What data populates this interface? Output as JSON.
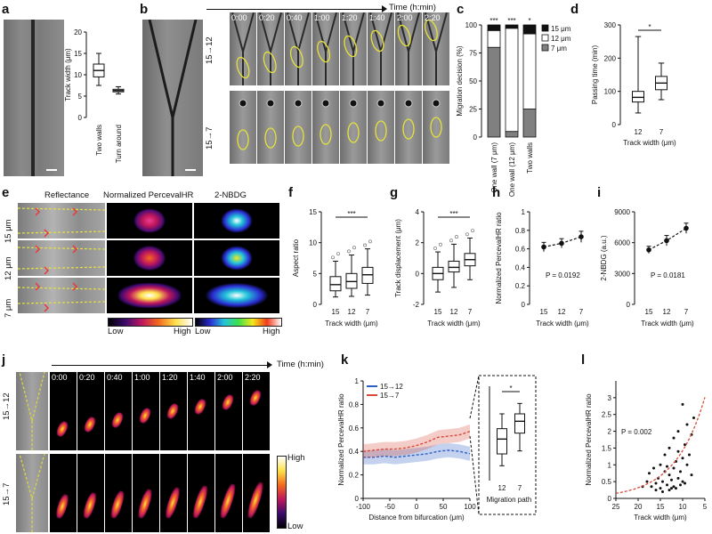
{
  "panel_labels": [
    "a",
    "b",
    "c",
    "d",
    "e",
    "f",
    "g",
    "h",
    "i",
    "j",
    "k",
    "l"
  ],
  "time_axis_label": "Time (h:min)",
  "panel_b": {
    "rows": [
      "15→12",
      "15→7"
    ],
    "times": [
      "0:00",
      "0:20",
      "0:40",
      "1:00",
      "1:20",
      "1:40",
      "2:00",
      "2:20"
    ]
  },
  "panel_e": {
    "columns": [
      "Reflectance",
      "Normalized PercevalHR",
      "2-NBDG"
    ],
    "rows": [
      "15 μm",
      "12 μm",
      "7 μm"
    ],
    "scale_low": "Low",
    "scale_high": "High"
  },
  "panel_j": {
    "rows": [
      "15→12",
      "15→7"
    ],
    "times": [
      "0:00",
      "0:20",
      "0:40",
      "1:00",
      "1:20",
      "1:40",
      "2:00",
      "2:20"
    ],
    "scale_high": "High",
    "scale_low": "Low"
  },
  "chart_data": [
    {
      "id": "a",
      "type": "box",
      "ylabel": "Track width (μm)",
      "ylim": [
        0,
        20
      ],
      "yticks": [
        0,
        5,
        10,
        15,
        20
      ],
      "categories": [
        "Two walls",
        "Turn around"
      ],
      "boxes": [
        {
          "min": 7.5,
          "q1": 9.5,
          "median": 11,
          "q3": 12.5,
          "max": 15
        },
        {
          "min": 5.5,
          "q1": 6.0,
          "median": 6.3,
          "q3": 6.6,
          "max": 7.2
        }
      ]
    },
    {
      "id": "c",
      "type": "bar",
      "ylabel": "Migration decision (%)",
      "ylim": [
        0,
        100
      ],
      "yticks": [
        0,
        25,
        50,
        75,
        100
      ],
      "categories": [
        "One wall (7 μm)",
        "One wall (12 μm)",
        "Two walls"
      ],
      "series": [
        {
          "name": "7 μm",
          "color": "#808080",
          "values": [
            80,
            5,
            25
          ]
        },
        {
          "name": "12 μm",
          "color": "#ffffff",
          "values": [
            15,
            92,
            67
          ]
        },
        {
          "name": "15 μm",
          "color": "#111111",
          "values": [
            5,
            3,
            8
          ]
        }
      ],
      "annotations": [
        "***",
        "***",
        "*"
      ]
    },
    {
      "id": "d",
      "type": "box",
      "ylabel": "Passing time (min)",
      "xlabel": "Track width (μm)",
      "ylim": [
        0,
        300
      ],
      "yticks": [
        0,
        100,
        200,
        300
      ],
      "categories": [
        "12",
        "7"
      ],
      "boxes": [
        {
          "min": 35,
          "q1": 68,
          "median": 82,
          "q3": 100,
          "max": 265
        },
        {
          "min": 75,
          "q1": 105,
          "median": 125,
          "q3": 145,
          "max": 185
        }
      ],
      "annotations": [
        "*"
      ]
    },
    {
      "id": "f",
      "type": "box",
      "ylabel": "Aspect ratio",
      "xlabel": "Track width (μm)",
      "ylim": [
        0,
        15
      ],
      "yticks": [
        0,
        5,
        10,
        15
      ],
      "categories": [
        "15",
        "12",
        "7"
      ],
      "boxes": [
        {
          "min": 1.2,
          "q1": 2.2,
          "median": 3.2,
          "q3": 4.5,
          "max": 7
        },
        {
          "min": 1.3,
          "q1": 2.6,
          "median": 3.7,
          "q3": 5.0,
          "max": 8
        },
        {
          "min": 1.5,
          "q1": 3.4,
          "median": 4.8,
          "q3": 6.0,
          "max": 9
        }
      ],
      "annotations": [
        "***"
      ]
    },
    {
      "id": "g",
      "type": "box",
      "ylabel": "Track displacement (μm)",
      "xlabel": "Track width (μm)",
      "ylim": [
        -2,
        4
      ],
      "yticks": [
        -2,
        0,
        2,
        4
      ],
      "categories": [
        "15",
        "12",
        "7"
      ],
      "boxes": [
        {
          "min": -1.2,
          "q1": -0.4,
          "median": 0.0,
          "q3": 0.4,
          "max": 1.4
        },
        {
          "min": -0.9,
          "q1": 0.1,
          "median": 0.4,
          "q3": 0.8,
          "max": 1.9
        },
        {
          "min": -0.4,
          "q1": 0.5,
          "median": 0.9,
          "q3": 1.3,
          "max": 2.3
        }
      ],
      "annotations": [
        "***"
      ]
    },
    {
      "id": "h",
      "type": "line",
      "ylabel": "Normalized PercevalHR ratio",
      "xlabel": "Track width (μm)",
      "ylim": [
        0,
        1.0
      ],
      "yticks": [
        0,
        0.2,
        0.4,
        0.6,
        0.8,
        1.0
      ],
      "categories": [
        "15",
        "12",
        "7"
      ],
      "values": [
        0.62,
        0.66,
        0.73
      ],
      "errors": [
        0.05,
        0.05,
        0.06
      ],
      "annotation": "P = 0.0192"
    },
    {
      "id": "i",
      "type": "line",
      "ylabel": "2-NBDG (a.u.)",
      "xlabel": "Track width (μm)",
      "ylim": [
        0,
        9000
      ],
      "yticks": [
        0,
        3000,
        6000,
        9000
      ],
      "categories": [
        "15",
        "12",
        "7"
      ],
      "values": [
        5300,
        6200,
        7400
      ],
      "errors": [
        350,
        500,
        500
      ],
      "annotation": "P = 0.0181"
    },
    {
      "id": "k",
      "type": "area",
      "ylabel": "Normalized PercevalHR ratio",
      "xlabel": "Distance from bifurcation (μm)",
      "xlim": [
        -100,
        100
      ],
      "xticks": [
        -100,
        -50,
        0,
        50,
        100
      ],
      "ylim": [
        0,
        1.0
      ],
      "yticks": [
        0,
        0.2,
        0.4,
        0.6,
        0.8,
        1.0
      ],
      "x": [
        -100,
        -80,
        -60,
        -40,
        -20,
        0,
        20,
        40,
        60,
        80,
        100
      ],
      "series": [
        {
          "name": "15→12",
          "color": "#2b5fc4",
          "values": [
            0.35,
            0.35,
            0.36,
            0.35,
            0.36,
            0.37,
            0.38,
            0.4,
            0.41,
            0.4,
            0.38
          ],
          "error": [
            0.06,
            0.06,
            0.06,
            0.06,
            0.06,
            0.06,
            0.06,
            0.06,
            0.06,
            0.06,
            0.06
          ]
        },
        {
          "name": "15→7",
          "color": "#d84a3a",
          "values": [
            0.4,
            0.41,
            0.42,
            0.42,
            0.43,
            0.45,
            0.48,
            0.52,
            0.53,
            0.54,
            0.57
          ],
          "error": [
            0.06,
            0.06,
            0.06,
            0.06,
            0.06,
            0.06,
            0.06,
            0.06,
            0.06,
            0.06,
            0.06
          ]
        }
      ]
    },
    {
      "id": "k-inset",
      "type": "box",
      "xlabel": "Migration path",
      "categories": [
        "12",
        "7"
      ],
      "boxes": [
        {
          "min": 0.2,
          "q1": 0.28,
          "median": 0.38,
          "q3": 0.45,
          "max": 0.55
        },
        {
          "min": 0.3,
          "q1": 0.42,
          "median": 0.5,
          "q3": 0.55,
          "max": 0.62
        }
      ],
      "annotations": [
        "*"
      ]
    },
    {
      "id": "l",
      "type": "scatter",
      "ylabel": "Normalized PercevalHR ratio",
      "xlabel": "Track width (μm)",
      "xlim": [
        25,
        5
      ],
      "xticks": [
        25,
        20,
        15,
        10,
        5
      ],
      "ylim": [
        0,
        3.5
      ],
      "yticks": [
        0,
        0.5,
        1.0,
        1.5,
        2.0,
        2.5,
        3.0
      ],
      "annotation": "P = 0.002",
      "points": [
        [
          17,
          0.35
        ],
        [
          16,
          0.45
        ],
        [
          15.5,
          0.6
        ],
        [
          15,
          0.3
        ],
        [
          14.5,
          0.5
        ],
        [
          14,
          0.8
        ],
        [
          13.5,
          0.4
        ],
        [
          13,
          0.7
        ],
        [
          12.5,
          0.55
        ],
        [
          12,
          0.9
        ],
        [
          12,
          0.35
        ],
        [
          11.5,
          1.1
        ],
        [
          11,
          0.6
        ],
        [
          11,
          1.4
        ],
        [
          10.5,
          0.8
        ],
        [
          10,
          1.2
        ],
        [
          10,
          0.5
        ],
        [
          9.5,
          1.6
        ],
        [
          9,
          1.0
        ],
        [
          9,
          2.2
        ],
        [
          8.5,
          1.3
        ],
        [
          8,
          0.7
        ],
        [
          8,
          1.9
        ],
        [
          7.5,
          2.4
        ],
        [
          16.5,
          0.9
        ],
        [
          15,
          1.0
        ],
        [
          14,
          1.3
        ],
        [
          13,
          0.25
        ],
        [
          12,
          1.8
        ],
        [
          11,
          2.0
        ],
        [
          10,
          2.8
        ],
        [
          9.5,
          0.45
        ],
        [
          13,
          1.5
        ],
        [
          14.5,
          0.2
        ],
        [
          16,
          0.25
        ],
        [
          18,
          0.5
        ],
        [
          19,
          0.35
        ],
        [
          17.5,
          0.75
        ],
        [
          12.5,
          0.3
        ],
        [
          10.5,
          0.4
        ],
        [
          11.5,
          0.3
        ],
        [
          13.5,
          0.95
        ]
      ],
      "fit_color": "#d84a3a"
    }
  ]
}
